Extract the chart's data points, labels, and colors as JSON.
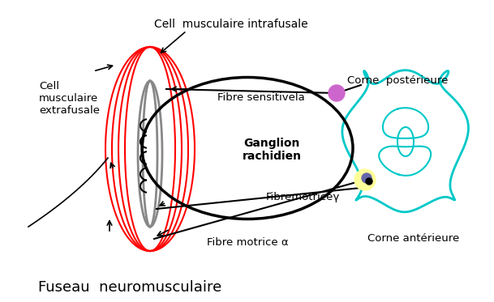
{
  "bg_color": "#ffffff",
  "red_color": "#ff0000",
  "black_color": "#000000",
  "teal_color": "#00c8c8",
  "gray_color": "#888888",
  "pink_color": "#cc66cc",
  "yellow_color": "#ffff99",
  "purple_color": "#6666aa",
  "labels": {
    "cell_intrafusale": "Cell  musculaire intrafusale",
    "cell_extrafusale": "Cell\nmusculaire\nextrafusale",
    "fibre_sensitive": "Fibre sensitiveIa",
    "corne_posterieure": "Corne  postérieure",
    "ganglion": "Ganglion\nrachidien",
    "fibre_motrice_gamma": "Fibremotriceγ",
    "fibre_motrice_alpha": "Fibre motrice α",
    "corne_anterieure": "Corne antérieure",
    "fuseau": "Fuseau  neuromusculaire"
  }
}
